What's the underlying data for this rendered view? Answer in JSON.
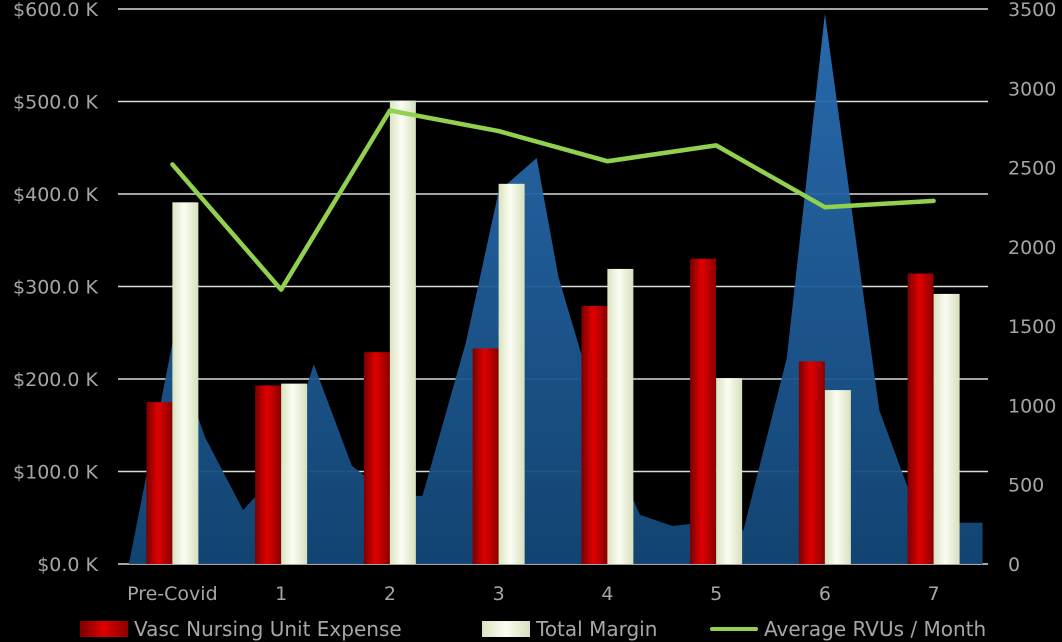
{
  "chart_data": {
    "type": "bar",
    "categories": [
      "Pre-Covid",
      "1",
      "2",
      "3",
      "4",
      "5",
      "6",
      "7"
    ],
    "y_left": {
      "ticks": [
        "$0.0 K",
        "$100.0 K",
        "$200.0 K",
        "$300.0 K",
        "$400.0 K",
        "$500.0 K",
        "$600.0 K"
      ],
      "lim": [
        0,
        600
      ]
    },
    "y_right": {
      "ticks": [
        "0",
        "500",
        "1000",
        "1500",
        "2000",
        "2500",
        "3000",
        "3500"
      ],
      "lim": [
        0,
        3500
      ]
    },
    "grid": true,
    "legend_position": "bottom",
    "series": [
      {
        "name": "Vasc Nursing Unit Expense",
        "kind": "bar",
        "axis": "left",
        "color": "#c00000",
        "values": [
          175,
          193,
          229,
          233,
          279,
          330,
          219,
          314
        ]
      },
      {
        "name": "Total Margin",
        "kind": "bar",
        "axis": "left",
        "color": "#eef6d9",
        "values": [
          391,
          195,
          501,
          411,
          319,
          201,
          188,
          292
        ]
      },
      {
        "name": "Average RVUs / Month",
        "kind": "line",
        "axis": "right",
        "color": "#92d050",
        "values": [
          2520,
          1730,
          2860,
          2730,
          2540,
          2640,
          2250,
          2290
        ]
      }
    ],
    "area": {
      "axis": "right",
      "color": "#1f5d9c",
      "x": [
        -0.65,
        -0.4,
        0.0,
        0.3,
        0.65,
        1.0,
        1.3,
        1.65,
        2.0,
        2.3,
        2.7,
        3.0,
        3.35,
        3.55,
        4.0,
        4.3,
        4.6,
        5.0,
        5.25,
        5.65,
        6.0,
        6.5,
        6.85,
        7.15,
        7.45
      ],
      "values": [
        0,
        0,
        1390,
        800,
        340,
        600,
        1260,
        620,
        430,
        430,
        1400,
        2350,
        2560,
        1810,
        770,
        310,
        240,
        270,
        210,
        1300,
        3470,
        970,
        320,
        260,
        260
      ]
    }
  },
  "legend": {
    "items": [
      "Vasc Nursing Unit Expense",
      "Total Margin",
      "Average RVUs / Month"
    ]
  }
}
